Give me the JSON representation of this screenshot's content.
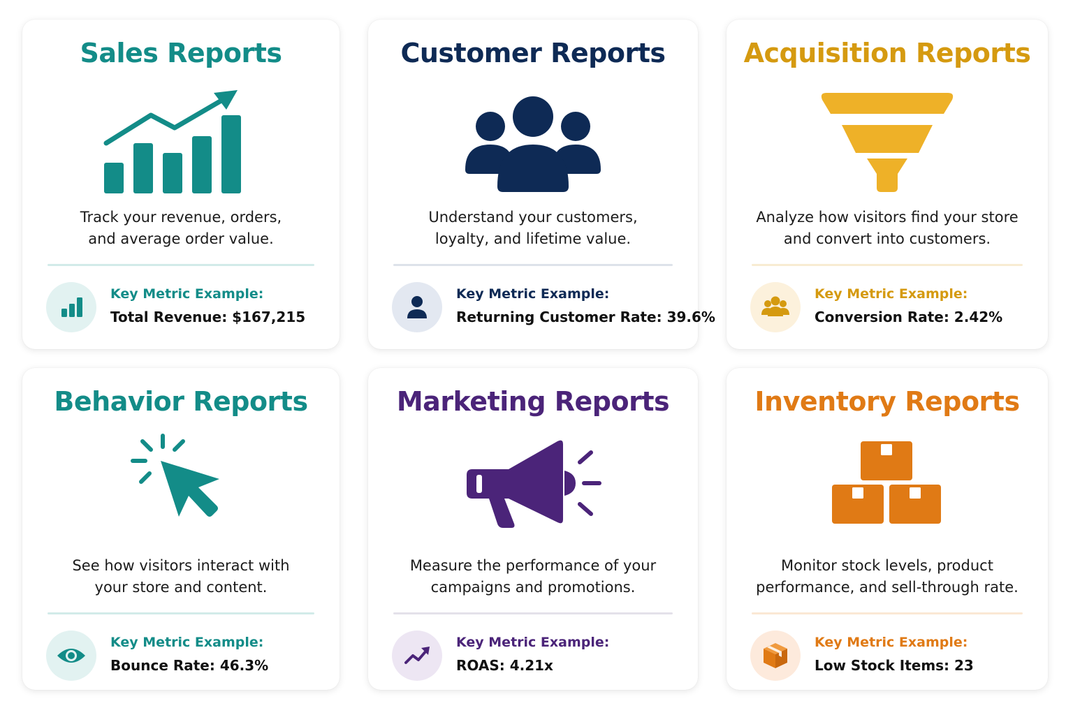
{
  "colors": {
    "sales": "#138c88",
    "customer": "#0e2a55",
    "acquisition": "#d59a10",
    "behavior": "#138c88",
    "marketing": "#4b2479",
    "inventory": "#e07a15"
  },
  "cards": [
    {
      "title": "Sales Reports",
      "description_line1": "Track your revenue, orders,",
      "description_line2": "and average order value.",
      "metric_label": "Key Metric Example:",
      "metric_value": "Total Revenue: $167,215",
      "illustration": "bar-chart-trend-icon",
      "badge_icon": "bar-chart-icon"
    },
    {
      "title": "Customer Reports",
      "description_line1": "Understand your customers,",
      "description_line2": "loyalty, and lifetime value.",
      "metric_label": "Key Metric Example:",
      "metric_value": "Returning Customer Rate: 39.6%",
      "illustration": "people-group-icon",
      "badge_icon": "user-icon"
    },
    {
      "title": "Acquisition Reports",
      "description_line1": "Analyze how visitors find your store",
      "description_line2": "and convert into customers.",
      "metric_label": "Key Metric Example:",
      "metric_value": "Conversion Rate: 2.42%",
      "illustration": "funnel-icon",
      "badge_icon": "users-icon"
    },
    {
      "title": "Behavior Reports",
      "description_line1": "See how visitors interact with",
      "description_line2": "your store and content.",
      "metric_label": "Key Metric Example:",
      "metric_value": "Bounce Rate: 46.3%",
      "illustration": "cursor-click-icon",
      "badge_icon": "eye-icon"
    },
    {
      "title": "Marketing Reports",
      "description_line1": "Measure the performance of your",
      "description_line2": "campaigns and promotions.",
      "metric_label": "Key Metric Example:",
      "metric_value": "ROAS: 4.21x",
      "illustration": "megaphone-icon",
      "badge_icon": "trend-up-icon"
    },
    {
      "title": "Inventory Reports",
      "description_line1": "Monitor stock levels, product",
      "description_line2": "performance, and sell-through rate.",
      "metric_label": "Key Metric Example:",
      "metric_value": "Low Stock Items: 23",
      "illustration": "stacked-boxes-icon",
      "badge_icon": "box-icon"
    }
  ]
}
